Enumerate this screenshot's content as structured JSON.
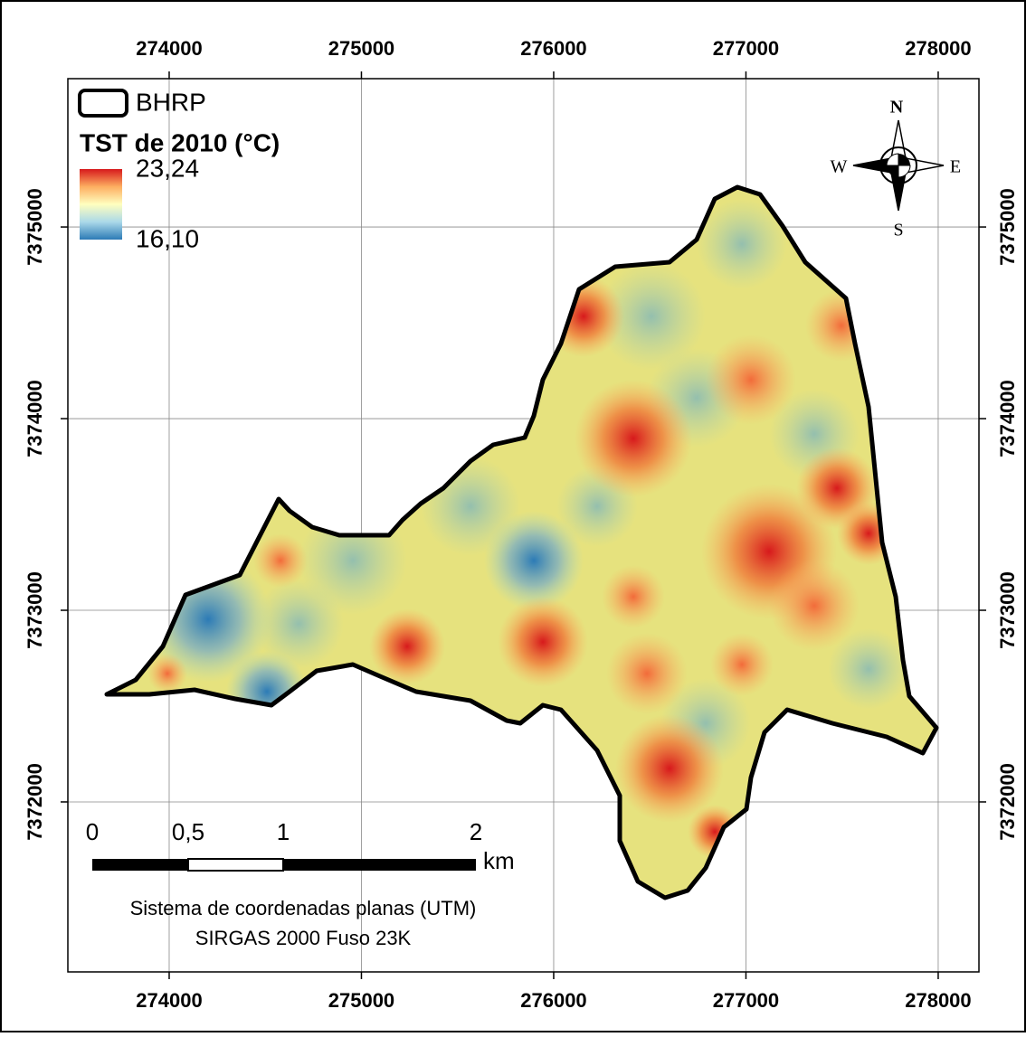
{
  "map": {
    "xlim": [
      273473,
      278212
    ],
    "ylim": [
      7371113,
      7375774
    ],
    "xticks": [
      274000,
      275000,
      276000,
      277000,
      278000
    ],
    "yticks": [
      7372000,
      7373000,
      7374000,
      7375000
    ],
    "grid": true,
    "legend": {
      "boundary": "BHRP",
      "title": "TST de 2010 (°C)",
      "colorbar": {
        "max": {
          "value": 23.24,
          "label": "23,24"
        },
        "min": {
          "value": 16.1,
          "label": "16,10"
        }
      }
    },
    "compass": {
      "n": "N",
      "s": "S",
      "e": "E",
      "w": "W"
    },
    "scalebar": {
      "labels": [
        "0",
        "0,5",
        "1",
        "2"
      ],
      "unit": "km"
    },
    "crs": [
      "Sistema de coordenadas planas (UTM)",
      "SIRGAS 2000 Fuso 23K"
    ]
  }
}
